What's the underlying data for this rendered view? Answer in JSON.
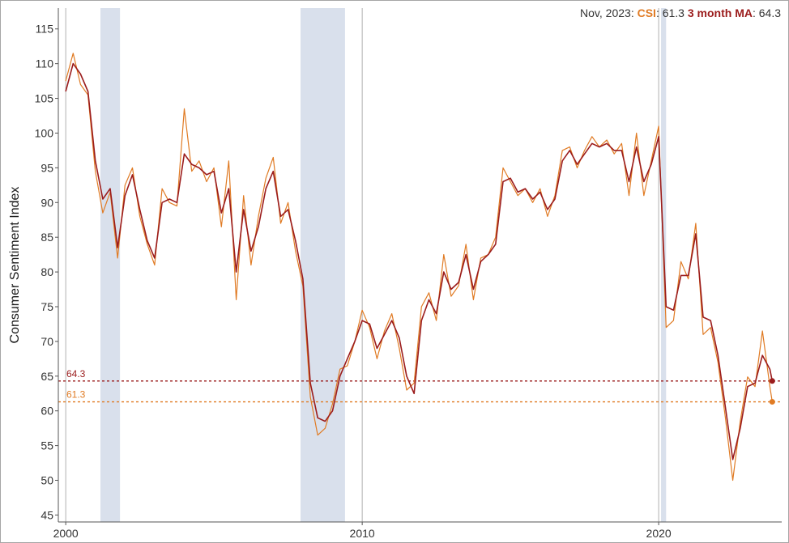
{
  "readout": {
    "date": "Nov, 2023:",
    "csi_label": "CSI",
    "csi_value": ": 61.3",
    "ma_label": "3 month MA",
    "ma_value": ": 64.3"
  },
  "colors": {
    "csi": "#e07b24",
    "ma": "#9b1c1c",
    "recession": "#d9e0ec",
    "axis": "#555555",
    "vline": "#b0b0b0"
  },
  "chart_data": {
    "type": "line",
    "ylabel": "Consumer Sentiment Index",
    "xlabel": "",
    "ylim": [
      44,
      118
    ],
    "xlim": [
      1999.75,
      2024.15
    ],
    "y_ticks": [
      "45",
      "50",
      "55",
      "60",
      "65",
      "70",
      "75",
      "80",
      "85",
      "90",
      "95",
      "100",
      "105",
      "110",
      "115"
    ],
    "x_ticks": [
      {
        "value": 2000,
        "label": "2000"
      },
      {
        "value": 2010,
        "label": "2010"
      },
      {
        "value": 2020,
        "label": "2020"
      }
    ],
    "grid": false,
    "recessions": [
      [
        2001.17,
        2001.83
      ],
      [
        2007.92,
        2009.42
      ],
      [
        2020.08,
        2020.25
      ]
    ],
    "reference_lines": [
      {
        "value": 64.3,
        "label": "64.3",
        "series": "3 month MA"
      },
      {
        "value": 61.3,
        "label": "61.3",
        "series": "CSI"
      }
    ],
    "series": [
      {
        "name": "CSI",
        "x": [
          2000.0,
          2000.25,
          2000.5,
          2000.75,
          2001.0,
          2001.25,
          2001.5,
          2001.75,
          2002.0,
          2002.25,
          2002.5,
          2002.75,
          2003.0,
          2003.25,
          2003.5,
          2003.75,
          2004.0,
          2004.25,
          2004.5,
          2004.75,
          2005.0,
          2005.25,
          2005.5,
          2005.75,
          2006.0,
          2006.25,
          2006.5,
          2006.75,
          2007.0,
          2007.25,
          2007.5,
          2007.75,
          2008.0,
          2008.25,
          2008.5,
          2008.75,
          2009.0,
          2009.25,
          2009.5,
          2009.75,
          2010.0,
          2010.25,
          2010.5,
          2010.75,
          2011.0,
          2011.25,
          2011.5,
          2011.75,
          2012.0,
          2012.25,
          2012.5,
          2012.75,
          2013.0,
          2013.25,
          2013.5,
          2013.75,
          2014.0,
          2014.25,
          2014.5,
          2014.75,
          2015.0,
          2015.25,
          2015.5,
          2015.75,
          2016.0,
          2016.25,
          2016.5,
          2016.75,
          2017.0,
          2017.25,
          2017.5,
          2017.75,
          2018.0,
          2018.25,
          2018.5,
          2018.75,
          2019.0,
          2019.25,
          2019.5,
          2019.75,
          2020.0,
          2020.25,
          2020.5,
          2020.75,
          2021.0,
          2021.25,
          2021.5,
          2021.75,
          2022.0,
          2022.25,
          2022.5,
          2022.75,
          2023.0,
          2023.25,
          2023.5,
          2023.75,
          2023.83
        ],
        "values": [
          107.5,
          111.5,
          107.0,
          105.5,
          94.5,
          88.5,
          91.5,
          82.0,
          92.5,
          95.0,
          88.0,
          84.0,
          81.0,
          92.0,
          90.0,
          89.5,
          103.5,
          94.5,
          96.0,
          93.0,
          95.0,
          86.5,
          96.0,
          76.0,
          91.0,
          81.0,
          88.0,
          93.5,
          96.5,
          87.0,
          90.0,
          83.0,
          78.0,
          62.0,
          56.5,
          57.5,
          61.0,
          66.0,
          66.5,
          70.0,
          74.5,
          72.0,
          67.5,
          71.5,
          74.0,
          69.0,
          63.0,
          64.0,
          75.0,
          77.0,
          73.0,
          82.5,
          76.5,
          78.0,
          84.0,
          76.0,
          82.0,
          82.5,
          85.0,
          95.0,
          93.0,
          91.0,
          92.0,
          90.0,
          92.0,
          88.0,
          91.0,
          97.5,
          98.0,
          95.0,
          97.5,
          99.5,
          98.0,
          99.0,
          97.0,
          98.5,
          91.0,
          100.0,
          91.0,
          96.0,
          101.0,
          72.0,
          73.0,
          81.5,
          79.0,
          87.0,
          71.0,
          72.0,
          67.0,
          59.0,
          50.0,
          58.5,
          64.9,
          63.5,
          71.5,
          63.5,
          61.3
        ]
      },
      {
        "name": "3 month MA",
        "x": [
          2000.0,
          2000.25,
          2000.5,
          2000.75,
          2001.0,
          2001.25,
          2001.5,
          2001.75,
          2002.0,
          2002.25,
          2002.5,
          2002.75,
          2003.0,
          2003.25,
          2003.5,
          2003.75,
          2004.0,
          2004.25,
          2004.5,
          2004.75,
          2005.0,
          2005.25,
          2005.5,
          2005.75,
          2006.0,
          2006.25,
          2006.5,
          2006.75,
          2007.0,
          2007.25,
          2007.5,
          2007.75,
          2008.0,
          2008.25,
          2008.5,
          2008.75,
          2009.0,
          2009.25,
          2009.5,
          2009.75,
          2010.0,
          2010.25,
          2010.5,
          2010.75,
          2011.0,
          2011.25,
          2011.5,
          2011.75,
          2012.0,
          2012.25,
          2012.5,
          2012.75,
          2013.0,
          2013.25,
          2013.5,
          2013.75,
          2014.0,
          2014.25,
          2014.5,
          2014.75,
          2015.0,
          2015.25,
          2015.5,
          2015.75,
          2016.0,
          2016.25,
          2016.5,
          2016.75,
          2017.0,
          2017.25,
          2017.5,
          2017.75,
          2018.0,
          2018.25,
          2018.5,
          2018.75,
          2019.0,
          2019.25,
          2019.5,
          2019.75,
          2020.0,
          2020.25,
          2020.5,
          2020.75,
          2021.0,
          2021.25,
          2021.5,
          2021.75,
          2022.0,
          2022.25,
          2022.5,
          2022.75,
          2023.0,
          2023.25,
          2023.5,
          2023.75,
          2023.83
        ],
        "values": [
          106.0,
          110.0,
          108.5,
          106.0,
          96.0,
          90.5,
          92.0,
          83.5,
          91.0,
          94.0,
          89.0,
          84.5,
          82.0,
          90.0,
          90.5,
          90.0,
          97.0,
          95.5,
          95.0,
          94.0,
          94.5,
          88.5,
          92.0,
          80.0,
          89.0,
          83.0,
          86.5,
          92.0,
          94.5,
          88.0,
          89.0,
          84.5,
          79.0,
          64.0,
          59.0,
          58.5,
          60.0,
          65.0,
          67.5,
          70.0,
          73.0,
          72.5,
          69.0,
          71.0,
          73.0,
          70.5,
          65.0,
          62.5,
          73.0,
          76.0,
          74.0,
          80.0,
          77.5,
          78.5,
          82.5,
          77.5,
          81.5,
          82.5,
          84.0,
          93.0,
          93.5,
          91.5,
          92.0,
          90.5,
          91.5,
          89.0,
          90.5,
          96.0,
          97.5,
          95.5,
          97.0,
          98.5,
          98.0,
          98.5,
          97.5,
          97.5,
          93.0,
          98.0,
          93.0,
          95.5,
          99.5,
          75.0,
          74.5,
          79.5,
          79.5,
          85.5,
          73.5,
          73.0,
          68.0,
          60.5,
          53.0,
          57.5,
          63.5,
          64.0,
          68.0,
          66.0,
          64.3
        ]
      }
    ]
  }
}
